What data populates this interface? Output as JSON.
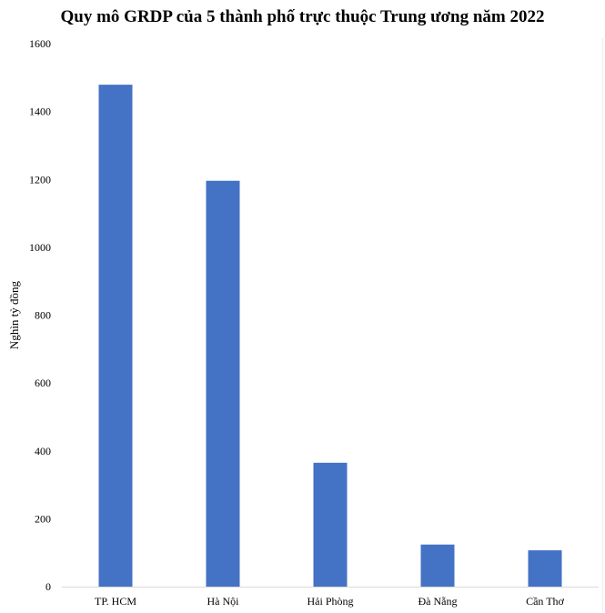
{
  "chart_data": {
    "type": "bar",
    "title": "Quy mô GRDP của 5 thành phố trực thuộc Trung ương năm 2022",
    "xlabel": "",
    "ylabel": "Nghìn tỷ đồng",
    "categories": [
      "TP. HCM",
      "Hà Nội",
      "Hải Phòng",
      "Đà Nẵng",
      "Cần Thơ"
    ],
    "values": [
      1479,
      1196,
      365,
      124,
      107
    ],
    "ylim": [
      0,
      1600
    ],
    "yticks": [
      0,
      200,
      400,
      600,
      800,
      1000,
      1200,
      1400,
      1600
    ],
    "grid": false,
    "legend": "none",
    "bar_color": "#4472C4",
    "axis_color": "#d9d9d9"
  }
}
